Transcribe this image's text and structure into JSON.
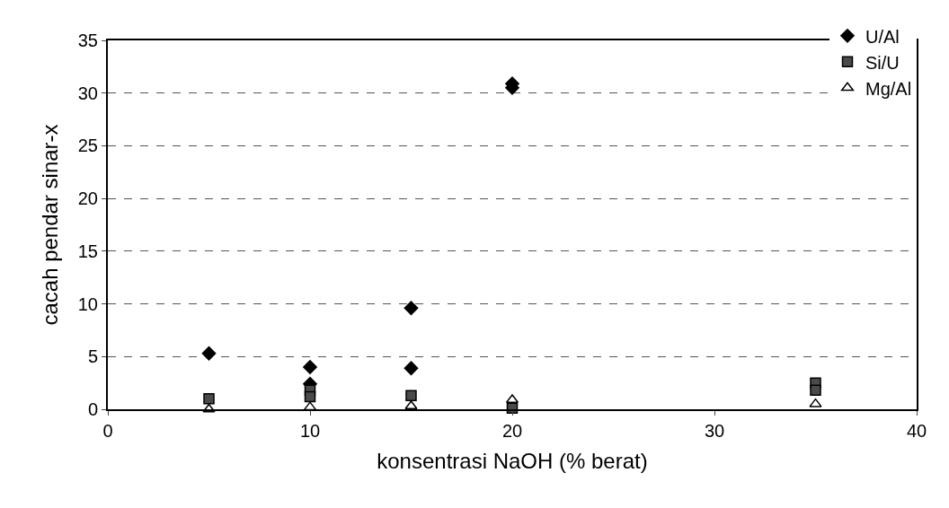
{
  "chart_data": {
    "type": "scatter",
    "xlabel": "konsentrasi NaOH (% berat)",
    "ylabel": "cacah pendar sinar-x",
    "xlim": [
      0,
      40
    ],
    "xticks": [
      0,
      10,
      20,
      30,
      40
    ],
    "ylim": [
      0,
      35
    ],
    "yticks": [
      0,
      5,
      10,
      15,
      20,
      25,
      30,
      35
    ],
    "grid": "y",
    "legend": "top right",
    "series": [
      {
        "name": "U/Al",
        "color": "#000000",
        "marker": "diamond",
        "x": [
          5,
          10,
          10,
          15,
          15,
          20,
          20
        ],
        "values": [
          5.3,
          4.0,
          2.4,
          9.6,
          3.9,
          30.9,
          30.5
        ]
      },
      {
        "name": "Si/U",
        "color": "#4a4a4a",
        "marker": "square",
        "x": [
          5,
          10,
          10,
          15,
          20,
          35,
          35
        ],
        "values": [
          1.0,
          1.8,
          1.2,
          1.3,
          0.1,
          2.5,
          1.8
        ]
      },
      {
        "name": "Mg/Al",
        "color": "#ffffff",
        "marker": "triangle",
        "x": [
          5,
          10,
          15,
          20,
          35
        ],
        "values": [
          0,
          0.2,
          0.3,
          0.9,
          0.5
        ]
      }
    ]
  }
}
